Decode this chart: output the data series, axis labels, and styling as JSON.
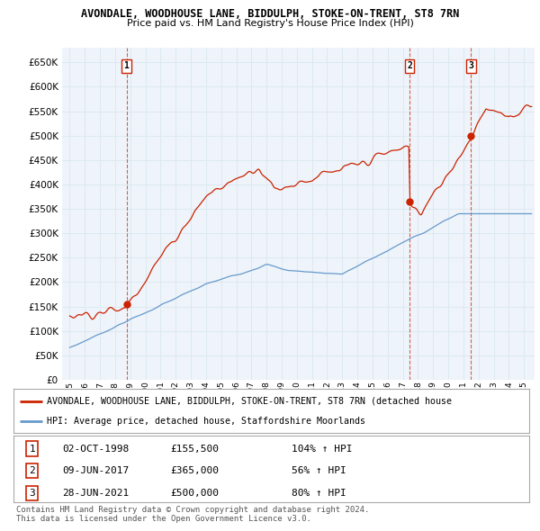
{
  "title": "AVONDALE, WOODHOUSE LANE, BIDDULPH, STOKE-ON-TRENT, ST8 7RN",
  "subtitle": "Price paid vs. HM Land Registry's House Price Index (HPI)",
  "ylabel_ticks": [
    "£0",
    "£50K",
    "£100K",
    "£150K",
    "£200K",
    "£250K",
    "£300K",
    "£350K",
    "£400K",
    "£450K",
    "£500K",
    "£550K",
    "£600K",
    "£650K"
  ],
  "ytick_values": [
    0,
    50000,
    100000,
    150000,
    200000,
    250000,
    300000,
    350000,
    400000,
    450000,
    500000,
    550000,
    600000,
    650000
  ],
  "hpi_color": "#6699cc",
  "price_color": "#cc2200",
  "transactions": [
    {
      "date": 1998.75,
      "price": 155500,
      "label": "1"
    },
    {
      "date": 2017.44,
      "price": 365000,
      "label": "2"
    },
    {
      "date": 2021.49,
      "price": 500000,
      "label": "3"
    }
  ],
  "legend_label_red": "AVONDALE, WOODHOUSE LANE, BIDDULPH, STOKE-ON-TRENT, ST8 7RN (detached house",
  "legend_label_blue": "HPI: Average price, detached house, Staffordshire Moorlands",
  "table_rows": [
    [
      "1",
      "02-OCT-1998",
      "£155,500",
      "104% ↑ HPI"
    ],
    [
      "2",
      "09-JUN-2017",
      "£365,000",
      "56% ↑ HPI"
    ],
    [
      "3",
      "28-JUN-2021",
      "£500,000",
      "80% ↑ HPI"
    ]
  ],
  "footer": "Contains HM Land Registry data © Crown copyright and database right 2024.\nThis data is licensed under the Open Government Licence v3.0.",
  "background_color": "#ffffff",
  "grid_color": "#dde8f0",
  "chart_bg": "#eef4fa",
  "xlim": [
    1994.5,
    2025.7
  ],
  "ylim": [
    0,
    680000
  ]
}
